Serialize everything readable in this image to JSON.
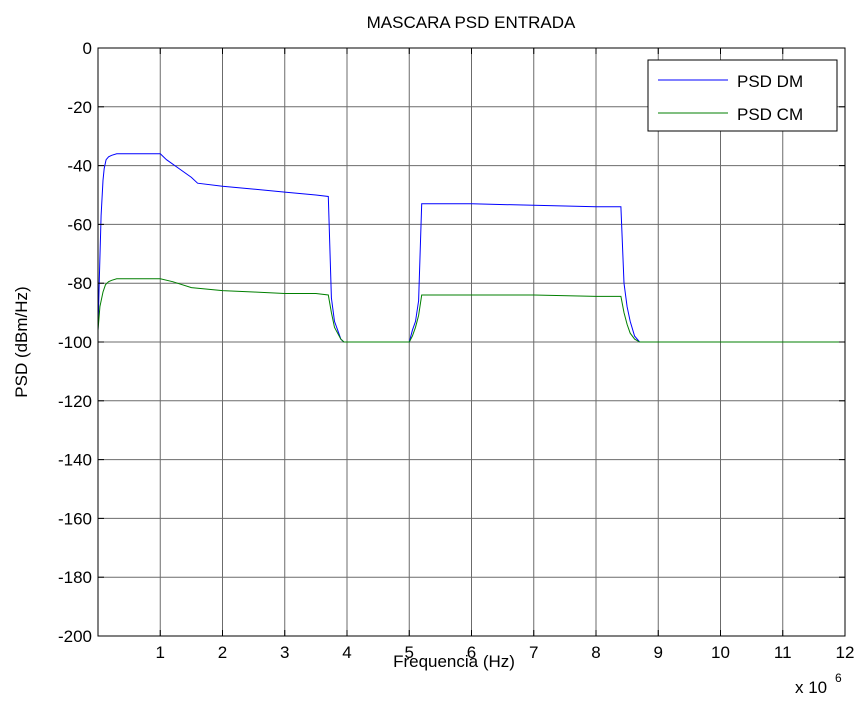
{
  "chart_data": {
    "type": "line",
    "title": "MASCARA PSD ENTRADA",
    "xlabel": "Frequencia (Hz)",
    "ylabel": "PSD (dBm/Hz)",
    "x_multiplier_base": "x 10",
    "x_multiplier_exp": "6",
    "xlim": [
      0,
      12
    ],
    "ylim": [
      -200,
      0
    ],
    "xticks": [
      1,
      2,
      3,
      4,
      5,
      6,
      7,
      8,
      9,
      10,
      11,
      12
    ],
    "yticks": [
      0,
      -20,
      -40,
      -60,
      -80,
      -100,
      -120,
      -140,
      -160,
      -180,
      -200
    ],
    "grid": true,
    "legend_position": "top-right",
    "series": [
      {
        "name": "PSD DM",
        "color": "#0000ff",
        "x": [
          0.0,
          0.02,
          0.05,
          0.08,
          0.1,
          0.13,
          0.17,
          0.22,
          0.3,
          1.0,
          1.1,
          1.3,
          1.5,
          1.6,
          2.0,
          2.5,
          3.0,
          3.5,
          3.7,
          3.72,
          3.75,
          3.8,
          3.85,
          3.9,
          3.95,
          4.0,
          4.4,
          5.0,
          5.05,
          5.1,
          5.15,
          5.2,
          5.3,
          6.0,
          7.0,
          8.0,
          8.4,
          8.42,
          8.45,
          8.5,
          8.55,
          8.62,
          8.7,
          12.0
        ],
        "y": [
          -96,
          -80,
          -57,
          -45,
          -41,
          -38,
          -37,
          -36.5,
          -36,
          -36,
          -38,
          -41,
          -44,
          -46,
          -47,
          -48,
          -49,
          -50,
          -50.5,
          -65,
          -85,
          -93,
          -96,
          -99,
          -100,
          -100,
          -100,
          -100,
          -96,
          -93,
          -86,
          -53,
          -53,
          -53,
          -53.5,
          -54,
          -54,
          -64,
          -80,
          -88,
          -93,
          -98,
          -100,
          -100
        ]
      },
      {
        "name": "PSD CM",
        "color": "#007f00",
        "x": [
          0.0,
          0.03,
          0.08,
          0.12,
          0.17,
          0.22,
          0.3,
          1.0,
          1.2,
          1.5,
          2.0,
          2.5,
          3.0,
          3.5,
          3.7,
          3.75,
          3.8,
          3.9,
          3.95,
          4.0,
          4.4,
          5.0,
          5.05,
          5.1,
          5.15,
          5.2,
          6.0,
          7.0,
          8.0,
          8.4,
          8.45,
          8.5,
          8.55,
          8.62,
          8.7,
          12.0
        ],
        "y": [
          -96,
          -88,
          -83,
          -80.5,
          -79.5,
          -79,
          -78.5,
          -78.5,
          -79.5,
          -81.5,
          -82.5,
          -83,
          -83.5,
          -83.5,
          -84,
          -90,
          -95,
          -99,
          -100,
          -100,
          -100,
          -100,
          -98,
          -95,
          -91,
          -84,
          -84,
          -84,
          -84.5,
          -84.5,
          -90,
          -94,
          -97,
          -99,
          -100,
          -100
        ]
      }
    ]
  }
}
